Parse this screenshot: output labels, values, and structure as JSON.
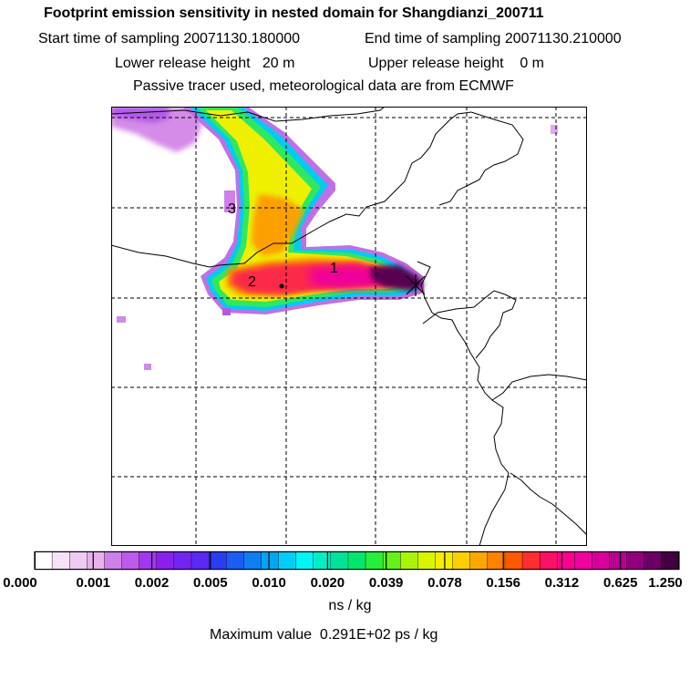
{
  "header": {
    "title": "Footprint emission sensitivity in nested domain for Shangdianzi_200711",
    "start_label": "Start time of sampling",
    "start_value": "20071130.180000",
    "end_label": "End time of sampling",
    "end_value": "20071130.210000",
    "lower_label": "Lower release height",
    "lower_value": "20 m",
    "upper_label": "Upper release height",
    "upper_value": "0 m",
    "tracer_note": "Passive tracer used, meteorological data are from ECMWF"
  },
  "map": {
    "markers": [
      {
        "label": "1",
        "name": "marker-1"
      },
      {
        "label": "2",
        "name": "marker-2"
      },
      {
        "label": "3",
        "name": "marker-3"
      }
    ]
  },
  "colorbar": {
    "tick_labels": [
      "0.000",
      "0.001",
      "0.002",
      "0.005",
      "0.010",
      "0.020",
      "0.039",
      "0.078",
      "0.156",
      "0.312",
      "0.625",
      "1.250"
    ],
    "colors": [
      "#ffffff",
      "#f6e2f6",
      "#efcbef",
      "#e6b2ec",
      "#cf7fe8",
      "#bc5aea",
      "#a436f0",
      "#8a20ee",
      "#7424f2",
      "#5c28f4",
      "#2c3cf4",
      "#1c5cf2",
      "#107ef2",
      "#00a6f2",
      "#00cef6",
      "#00f6f6",
      "#00eec6",
      "#00e29a",
      "#00e66e",
      "#26ee3a",
      "#64f21a",
      "#aaf40a",
      "#d8f600",
      "#f6ec00",
      "#fcd000",
      "#fca800",
      "#fc8200",
      "#fc5a00",
      "#fc2e2e",
      "#fc1066",
      "#fc0090",
      "#f0009e",
      "#d8009c",
      "#b80094",
      "#90007e",
      "#6a0066",
      "#42003e"
    ],
    "units": "ns / kg"
  },
  "footer": {
    "max_label": "Maximum value",
    "max_value": "0.291E+02 ps / kg"
  }
}
